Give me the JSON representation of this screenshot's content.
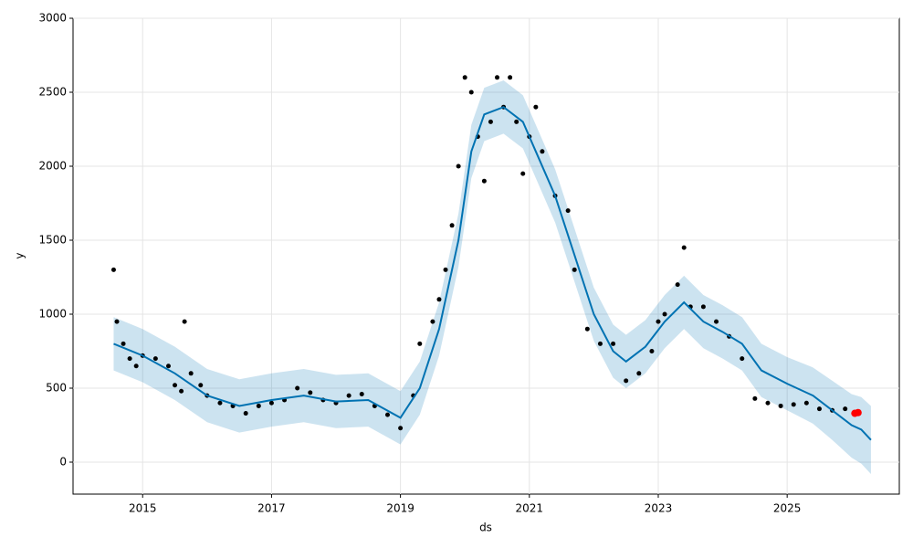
{
  "chart_data": {
    "type": "forecast",
    "xlabel": "ds",
    "ylabel": "y",
    "xlim": [
      2013.92,
      2026.74
    ],
    "ylim": [
      -216,
      3000
    ],
    "xticks": [
      2015,
      2017,
      2019,
      2021,
      2023,
      2025
    ],
    "yticks": [
      0,
      500,
      1000,
      1500,
      2000,
      2500,
      3000
    ],
    "grid": true,
    "observed": {
      "color": "#000000",
      "x": [
        2014.55,
        2014.6,
        2014.7,
        2014.8,
        2014.9,
        2015.0,
        2015.2,
        2015.4,
        2015.5,
        2015.6,
        2015.65,
        2015.75,
        2015.9,
        2016.0,
        2016.2,
        2016.4,
        2016.6,
        2016.8,
        2017.0,
        2017.2,
        2017.4,
        2017.6,
        2017.8,
        2018.0,
        2018.2,
        2018.4,
        2018.6,
        2018.8,
        2019.0,
        2019.2,
        2019.3,
        2019.5,
        2019.6,
        2019.7,
        2019.8,
        2019.9,
        2020.0,
        2020.1,
        2020.2,
        2020.3,
        2020.4,
        2020.5,
        2020.6,
        2020.7,
        2020.8,
        2020.9,
        2021.0,
        2021.1,
        2021.2,
        2021.4,
        2021.6,
        2021.7,
        2021.9,
        2022.1,
        2022.3,
        2022.5,
        2022.7,
        2022.9,
        2023.0,
        2023.1,
        2023.3,
        2023.4,
        2023.5,
        2023.7,
        2023.9,
        2024.1,
        2024.3,
        2024.5,
        2024.7,
        2024.9,
        2025.1,
        2025.3,
        2025.5,
        2025.7,
        2025.9
      ],
      "values": [
        1300,
        950,
        800,
        700,
        650,
        720,
        700,
        650,
        520,
        480,
        950,
        600,
        520,
        450,
        400,
        380,
        330,
        380,
        400,
        420,
        500,
        470,
        420,
        400,
        450,
        460,
        380,
        320,
        230,
        450,
        800,
        950,
        1100,
        1300,
        1600,
        2000,
        2600,
        2500,
        2200,
        1900,
        2300,
        2600,
        2400,
        2600,
        2300,
        1950,
        2200,
        2400,
        2100,
        1800,
        1700,
        1300,
        900,
        800,
        800,
        550,
        600,
        750,
        950,
        1000,
        1200,
        1450,
        1050,
        1050,
        950,
        850,
        700,
        430,
        400,
        380,
        390,
        400,
        360,
        350,
        360
      ]
    },
    "recent": {
      "color": "#ff0000",
      "x": [
        2026.05,
        2026.1
      ],
      "values": [
        330,
        335
      ]
    },
    "forecast": {
      "color": "#0072b2",
      "band_color": "#0072b2",
      "x": [
        2014.55,
        2015,
        2015.5,
        2016,
        2016.5,
        2017,
        2017.5,
        2018,
        2018.5,
        2019,
        2019.3,
        2019.6,
        2019.9,
        2020.1,
        2020.3,
        2020.6,
        2020.9,
        2021.1,
        2021.4,
        2021.7,
        2022,
        2022.3,
        2022.5,
        2022.8,
        2023.1,
        2023.4,
        2023.7,
        2024,
        2024.3,
        2024.6,
        2025,
        2025.4,
        2025.7,
        2026,
        2026.15,
        2026.3
      ],
      "values": [
        800,
        720,
        600,
        450,
        380,
        420,
        450,
        410,
        420,
        300,
        500,
        900,
        1500,
        2100,
        2350,
        2400,
        2300,
        2100,
        1800,
        1400,
        1000,
        750,
        680,
        780,
        950,
        1080,
        950,
        880,
        800,
        620,
        530,
        450,
        350,
        250,
        220,
        150
      ],
      "lower": [
        620,
        540,
        420,
        270,
        200,
        240,
        270,
        230,
        240,
        120,
        320,
        720,
        1320,
        1920,
        2170,
        2220,
        2120,
        1920,
        1620,
        1220,
        820,
        570,
        500,
        600,
        770,
        900,
        770,
        700,
        620,
        440,
        350,
        260,
        150,
        30,
        -10,
        -80
      ],
      "upper": [
        980,
        900,
        780,
        630,
        560,
        600,
        630,
        590,
        600,
        480,
        680,
        1080,
        1680,
        2280,
        2530,
        2580,
        2480,
        2280,
        1980,
        1580,
        1180,
        930,
        860,
        960,
        1130,
        1260,
        1130,
        1060,
        980,
        800,
        710,
        640,
        550,
        460,
        440,
        380
      ]
    }
  }
}
